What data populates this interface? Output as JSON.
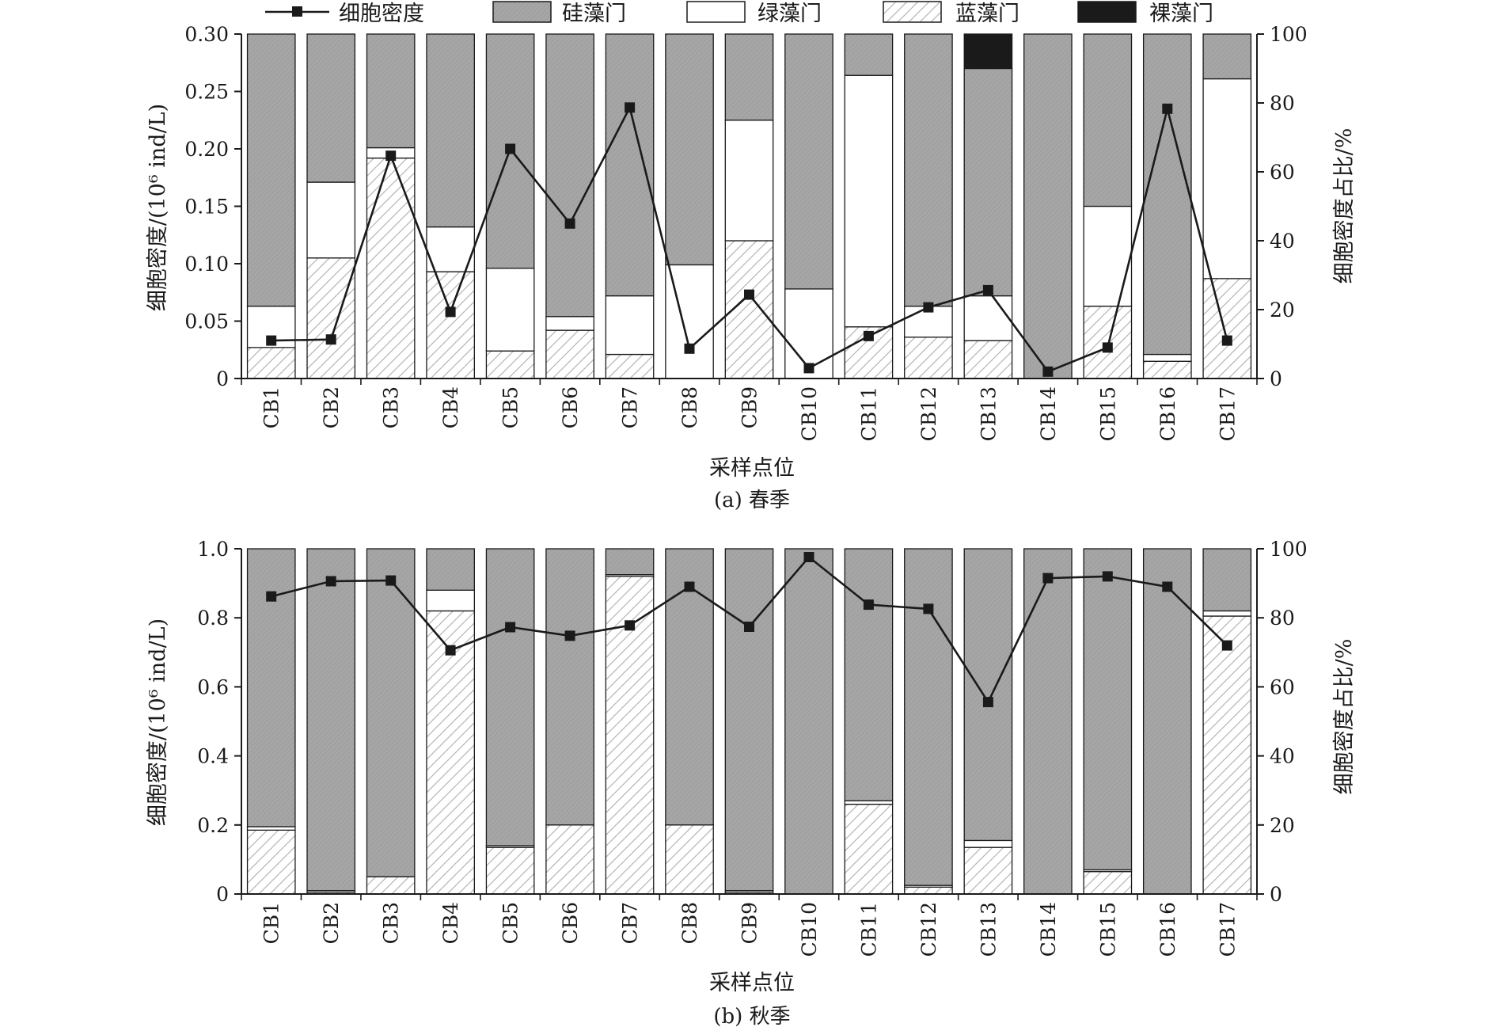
{
  "legend": [
    {
      "key": "density",
      "label": "细胞密度"
    },
    {
      "key": "diatom",
      "label": "硅藻门"
    },
    {
      "key": "green",
      "label": "绿藻门"
    },
    {
      "key": "cyan",
      "label": "蓝藻门"
    },
    {
      "key": "euglena",
      "label": "裸藻门"
    }
  ],
  "colors": {
    "diatom": "#a6a6a6",
    "green": "#ffffff",
    "cyan_stroke": "#b5b5b5",
    "euglena": "#1a1a1a",
    "line": "#1a1a1a"
  },
  "chart_data": [
    {
      "type": "bar",
      "subtitle": "(a) 春季",
      "xlabel": "采样点位",
      "ylabel": "细胞密度/(10⁶ ind/L)",
      "y2label": "细胞密度占比/%",
      "ylim": [
        0,
        0.3
      ],
      "y2lim": [
        0,
        100
      ],
      "yticks": [
        "0",
        "0.05",
        "0.10",
        "0.15",
        "0.20",
        "0.25",
        "0.30"
      ],
      "y2ticks": [
        "0",
        "20",
        "40",
        "60",
        "80",
        "100"
      ],
      "stacked_percent": true,
      "categories": [
        "CB1",
        "CB2",
        "CB3",
        "CB4",
        "CB5",
        "CB6",
        "CB7",
        "CB8",
        "CB9",
        "CB10",
        "CB11",
        "CB12",
        "CB13",
        "CB14",
        "CB15",
        "CB16",
        "CB17"
      ],
      "series": [
        {
          "name": "蓝藻门",
          "key": "cyan",
          "values": [
            9,
            35,
            64,
            31,
            8,
            14,
            7,
            0,
            40,
            0,
            15,
            12,
            11,
            0,
            21,
            5,
            29
          ]
        },
        {
          "name": "绿藻门",
          "key": "green",
          "values": [
            12,
            22,
            3,
            13,
            24,
            4,
            17,
            33,
            35,
            26,
            73,
            9,
            13,
            0,
            29,
            2,
            58
          ]
        },
        {
          "name": "硅藻门",
          "key": "diatom",
          "values": [
            79,
            43,
            33,
            56,
            68,
            82,
            76,
            67,
            25,
            74,
            12,
            79,
            66,
            100,
            50,
            93,
            13
          ]
        },
        {
          "name": "裸藻门",
          "key": "euglena",
          "values": [
            0,
            0,
            0,
            0,
            0,
            0,
            0,
            0,
            0,
            0,
            0,
            0,
            10,
            0,
            0,
            0,
            0
          ]
        }
      ],
      "line": {
        "name": "细胞密度",
        "values": [
          0.033,
          0.034,
          0.194,
          0.058,
          0.2,
          0.135,
          0.236,
          0.026,
          0.073,
          0.009,
          0.037,
          0.062,
          0.077,
          0.006,
          0.027,
          0.235,
          0.033
        ]
      }
    },
    {
      "type": "bar",
      "subtitle": "(b) 秋季",
      "xlabel": "采样点位",
      "ylabel": "细胞密度/(10⁶ ind/L)",
      "y2label": "细胞密度占比/%",
      "ylim": [
        0,
        1.0
      ],
      "y2lim": [
        0,
        100
      ],
      "yticks": [
        "0",
        "0.2",
        "0.4",
        "0.6",
        "0.8",
        "1.0"
      ],
      "y2ticks": [
        "0",
        "20",
        "40",
        "60",
        "80",
        "100"
      ],
      "stacked_percent": true,
      "categories": [
        "CB1",
        "CB2",
        "CB3",
        "CB4",
        "CB5",
        "CB6",
        "CB7",
        "CB8",
        "CB9",
        "CB10",
        "CB11",
        "CB12",
        "CB13",
        "CB14",
        "CB15",
        "CB16",
        "CB17"
      ],
      "series": [
        {
          "name": "蓝藻门",
          "key": "cyan",
          "values": [
            18.5,
            0.5,
            5,
            82,
            13.5,
            20,
            92,
            20,
            0.5,
            0,
            26,
            2,
            13.5,
            0,
            6.5,
            0,
            80.5
          ]
        },
        {
          "name": "绿藻门",
          "key": "green",
          "values": [
            1,
            0.5,
            0,
            6,
            0.5,
            0,
            0.5,
            0,
            0.5,
            0,
            1,
            0.5,
            2,
            0,
            0.5,
            0,
            1.5
          ]
        },
        {
          "name": "硅藻门",
          "key": "diatom",
          "values": [
            80.5,
            99,
            95,
            12,
            86,
            80,
            7.5,
            80,
            99,
            100,
            73,
            97.5,
            84.5,
            100,
            93,
            100,
            18
          ]
        },
        {
          "name": "裸藻门",
          "key": "euglena",
          "values": [
            0,
            0,
            0,
            0,
            0,
            0,
            0,
            0,
            0,
            0,
            0,
            0,
            0,
            0,
            0,
            0,
            0
          ]
        }
      ],
      "line": {
        "name": "细胞密度",
        "values": [
          0.862,
          0.906,
          0.908,
          0.706,
          0.773,
          0.748,
          0.778,
          0.89,
          0.774,
          0.976,
          0.838,
          0.826,
          0.556,
          0.915,
          0.92,
          0.89,
          0.72
        ]
      }
    }
  ]
}
